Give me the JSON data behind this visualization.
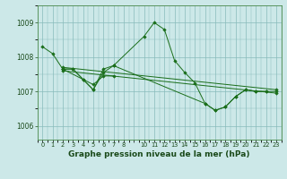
{
  "background_color": "#cce8e8",
  "grid_color": "#88bbbb",
  "line_color": "#1a6e1a",
  "marker_color": "#1a6e1a",
  "xlabel": "Graphe pression niveau de la mer (hPa)",
  "xlabel_fontsize": 6.5,
  "yticks": [
    1006,
    1007,
    1008,
    1009
  ],
  "ylim": [
    1005.6,
    1009.5
  ],
  "xlim": [
    -0.5,
    23.5
  ],
  "xtick_labels": [
    "0",
    "1",
    "2",
    "3",
    "4",
    "5",
    "6",
    "7",
    "8",
    "",
    "10",
    "11",
    "12",
    "13",
    "14",
    "15",
    "16",
    "17",
    "18",
    "19",
    "20",
    "21",
    "22",
    "23"
  ],
  "series": [
    {
      "x": [
        0,
        1,
        2,
        3,
        4,
        5,
        6,
        7,
        10,
        11,
        12,
        13,
        14,
        15,
        16,
        17,
        18,
        19,
        20,
        21,
        22,
        23
      ],
      "y": [
        1008.3,
        1008.1,
        1007.65,
        1007.65,
        1007.35,
        1007.05,
        1007.65,
        1007.75,
        1008.6,
        1009.0,
        1008.8,
        1007.9,
        1007.55,
        1007.25,
        1006.65,
        1006.45,
        1006.55,
        1006.85,
        1007.05,
        1007.0,
        1007.0,
        1007.0
      ]
    },
    {
      "x": [
        2,
        3,
        4,
        5,
        6,
        7,
        16,
        17,
        18,
        19,
        20,
        21,
        22
      ],
      "y": [
        1007.65,
        1007.65,
        1007.35,
        1007.05,
        1007.55,
        1007.75,
        1006.65,
        1006.45,
        1006.55,
        1006.85,
        1007.05,
        1007.0,
        1007.0
      ]
    },
    {
      "x": [
        2,
        5,
        6,
        7
      ],
      "y": [
        1007.65,
        1007.2,
        1007.45,
        1007.45
      ]
    },
    {
      "x": [
        2,
        23
      ],
      "y": [
        1007.7,
        1007.05
      ]
    },
    {
      "x": [
        2,
        23
      ],
      "y": [
        1007.6,
        1006.95
      ]
    }
  ]
}
